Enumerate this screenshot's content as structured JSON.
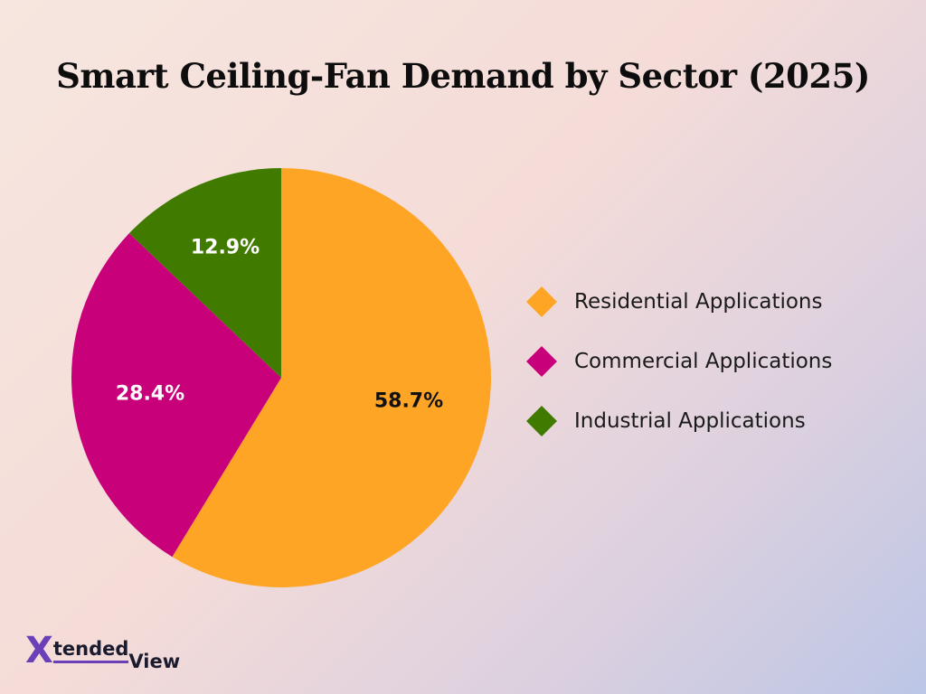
{
  "chart_data": {
    "type": "pie",
    "title": "Smart Ceiling-Fan Demand by Sector (2025)",
    "slices": [
      {
        "name": "Residential Applications",
        "value": 58.7,
        "label": "58.7%",
        "color": "#FFA526",
        "label_color": "#111111"
      },
      {
        "name": "Commercial Applications",
        "value": 28.4,
        "label": "28.4%",
        "color": "#C8007A",
        "label_color": "#FFFFFF"
      },
      {
        "name": "Industrial Applications",
        "value": 12.9,
        "label": "12.9%",
        "color": "#407B00",
        "label_color": "#FFFFFF"
      }
    ],
    "legend_position": "right",
    "start": "12 o'clock, clockwise"
  },
  "legend": {
    "items": [
      {
        "label": "Residential Applications",
        "color": "#FFA526"
      },
      {
        "label": "Commercial Applications",
        "color": "#C8007A"
      },
      {
        "label": "Industrial Applications",
        "color": "#407B00"
      }
    ]
  },
  "logo": {
    "letter": "X",
    "word1": "tended",
    "word2": "View"
  }
}
